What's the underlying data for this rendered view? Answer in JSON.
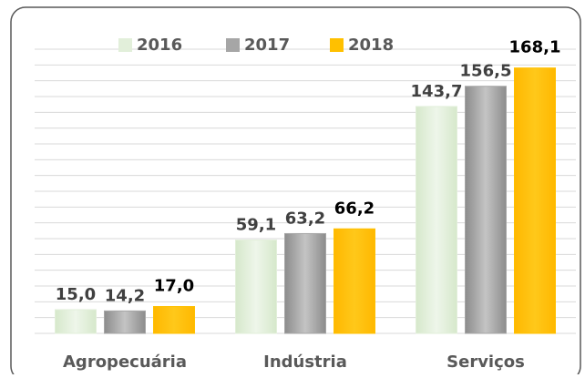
{
  "chart_data": {
    "type": "bar",
    "categories": [
      "Agropecuária",
      "Indústria",
      "Serviços"
    ],
    "series": [
      {
        "name": "2016",
        "color": "#e2efda",
        "values": [
          15.0,
          59.1,
          143.7
        ],
        "value_labels": [
          "15,0",
          "59,1",
          "143,7"
        ]
      },
      {
        "name": "2017",
        "color": "#a6a6a6",
        "values": [
          14.2,
          63.2,
          156.5
        ],
        "value_labels": [
          "14,2",
          "63,2",
          "156,5"
        ]
      },
      {
        "name": "2018",
        "color": "#ffc000",
        "values": [
          17.0,
          66.2,
          168.1
        ],
        "value_labels": [
          "17,0",
          "66,2",
          "168,1"
        ]
      }
    ],
    "ylim": [
      0,
      180
    ],
    "yticks": [
      0,
      10,
      20,
      30,
      40,
      50,
      60,
      70,
      80,
      90,
      100,
      110,
      120,
      130,
      140,
      150,
      160,
      170,
      180
    ],
    "grid": true,
    "legend": "top"
  }
}
